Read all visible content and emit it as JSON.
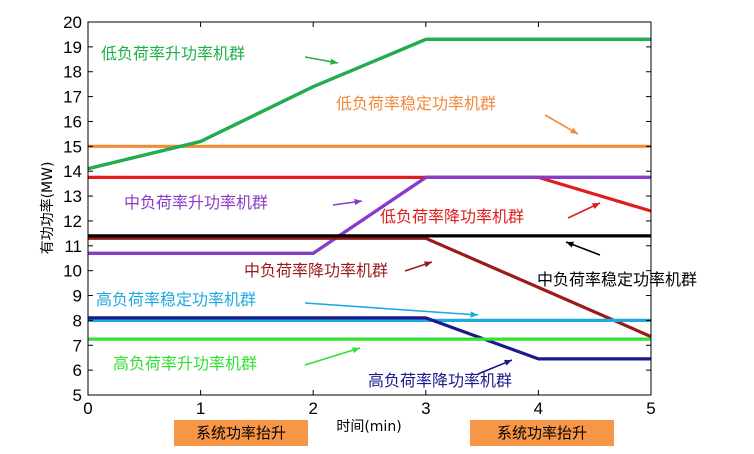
{
  "chart_data": {
    "type": "line",
    "title": "",
    "xlabel": "时间(min)",
    "ylabel": "有功功率(MW)",
    "xlim": [
      0,
      5
    ],
    "ylim": [
      5,
      20
    ],
    "xticks": [
      0,
      1,
      2,
      3,
      4,
      5
    ],
    "yticks": [
      5,
      6,
      7,
      8,
      9,
      10,
      11,
      12,
      13,
      14,
      15,
      16,
      17,
      18,
      19,
      20
    ],
    "grid": false,
    "series": [
      {
        "color": "#f08a3c",
        "x": [
          0,
          5
        ],
        "y": [
          15.0,
          15.0
        ]
      },
      {
        "color": "#2b2b9a",
        "x": [
          0,
          1,
          2,
          3,
          5
        ],
        "y": [
          14.1,
          15.2,
          17.4,
          19.3,
          19.3
        ]
      },
      {
        "color": "#1fb04a",
        "x": [
          0,
          1,
          2,
          3,
          5
        ],
        "y": [
          14.1,
          15.2,
          17.4,
          19.3,
          19.3
        ]
      },
      {
        "color": "#e01d1d",
        "x": [
          0,
          3,
          4,
          5
        ],
        "y": [
          13.75,
          13.75,
          13.75,
          12.4
        ]
      },
      {
        "color": "#2b2b9a",
        "x": [
          0,
          2,
          3,
          5
        ],
        "y": [
          10.7,
          10.7,
          13.75,
          13.75
        ]
      },
      {
        "color": "#8a3cc8",
        "x": [
          0,
          2,
          3,
          5
        ],
        "y": [
          10.7,
          10.7,
          13.75,
          13.75
        ]
      },
      {
        "color": "#9b1b1b",
        "x": [
          0,
          3,
          5
        ],
        "y": [
          11.3,
          11.3,
          7.35
        ]
      },
      {
        "color": "#000000",
        "x": [
          0,
          5
        ],
        "y": [
          11.4,
          11.4
        ]
      },
      {
        "color": "#1fa9e0",
        "x": [
          0,
          5
        ],
        "y": [
          8.0,
          8.0
        ]
      },
      {
        "color": "#1a1a8c",
        "x": [
          0,
          3,
          4,
          5
        ],
        "y": [
          8.1,
          8.1,
          6.45,
          6.45
        ]
      },
      {
        "color": "#33e033",
        "x": [
          0,
          5
        ],
        "y": [
          7.25,
          7.25
        ]
      }
    ],
    "annotations": [
      {
        "text": "低负荷率升功率机群",
        "color": "#1fb04a"
      },
      {
        "text": "低负荷率稳定功率机群",
        "color": "#f08a3c"
      },
      {
        "text": "中负荷率升功率机群",
        "color": "#8a3cc8"
      },
      {
        "text": "低负荷率降功率机群",
        "color": "#e01d1d"
      },
      {
        "text": "中负荷率降功率机群",
        "color": "#9b1b1b"
      },
      {
        "text": "中负荷率稳定功率机群",
        "color": "#000000"
      },
      {
        "text": "高负荷率稳定功率机群",
        "color": "#1fa9e0"
      },
      {
        "text": "高负荷率升功率机群",
        "color": "#33e033"
      },
      {
        "text": "高负荷率降功率机群",
        "color": "#1a1a8c"
      }
    ],
    "badges": [
      "系统功率抬升",
      "系统功率抬升"
    ]
  }
}
